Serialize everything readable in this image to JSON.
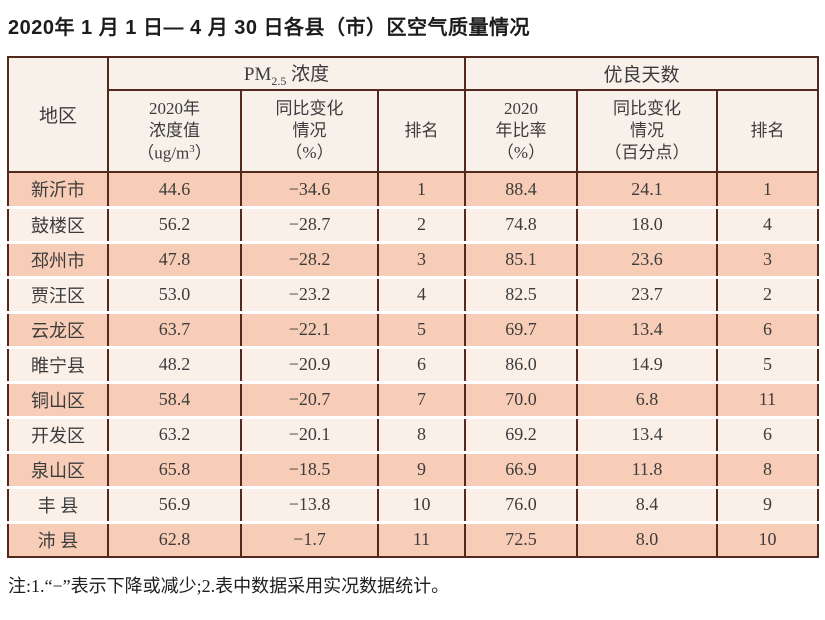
{
  "page": {
    "title": "2020年 1 月 1 日— 4 月 30 日各县（市）区空气质量情况",
    "footnote": "注:1.“−”表示下降或减少;2.表中数据采用实况数据统计。"
  },
  "colors": {
    "row_odd": "#f8cdb7",
    "row_even": "#fbf0e8",
    "header_bg": "#f8f1ea",
    "border": "#53281d",
    "text": "#3c3c3c"
  },
  "table": {
    "corner_header": "地区",
    "groups": {
      "pm_prefix": "PM",
      "pm_sub": "2.5",
      "pm_suffix": " 浓度",
      "good_days": "优良天数"
    },
    "subheaders": {
      "pm_value_l1": "2020年",
      "pm_value_l2": "浓度值",
      "pm_value_unit_open": "（ug/m",
      "pm_value_unit_sup": "3",
      "pm_value_unit_close": "）",
      "pm_change_l1": "同比变化",
      "pm_change_l2": "情况",
      "pm_change_l3": "（%）",
      "pm_rank": "排名",
      "ratio_l1": "2020",
      "ratio_l2": "年比率",
      "ratio_l3": "（%）",
      "good_change_l1": "同比变化",
      "good_change_l2": "情况",
      "good_change_l3": "（百分点）",
      "good_rank": "排名"
    },
    "rows": [
      {
        "region": "新沂市",
        "pm_value": "44.6",
        "pm_change": "−34.6",
        "pm_rank": "1",
        "ratio": "88.4",
        "good_change": "24.1",
        "good_rank": "1"
      },
      {
        "region": "鼓楼区",
        "pm_value": "56.2",
        "pm_change": "−28.7",
        "pm_rank": "2",
        "ratio": "74.8",
        "good_change": "18.0",
        "good_rank": "4"
      },
      {
        "region": "邳州市",
        "pm_value": "47.8",
        "pm_change": "−28.2",
        "pm_rank": "3",
        "ratio": "85.1",
        "good_change": "23.6",
        "good_rank": "3"
      },
      {
        "region": "贾汪区",
        "pm_value": "53.0",
        "pm_change": "−23.2",
        "pm_rank": "4",
        "ratio": "82.5",
        "good_change": "23.7",
        "good_rank": "2"
      },
      {
        "region": "云龙区",
        "pm_value": "63.7",
        "pm_change": "−22.1",
        "pm_rank": "5",
        "ratio": "69.7",
        "good_change": "13.4",
        "good_rank": "6"
      },
      {
        "region": "睢宁县",
        "pm_value": "48.2",
        "pm_change": "−20.9",
        "pm_rank": "6",
        "ratio": "86.0",
        "good_change": "14.9",
        "good_rank": "5"
      },
      {
        "region": "铜山区",
        "pm_value": "58.4",
        "pm_change": "−20.7",
        "pm_rank": "7",
        "ratio": "70.0",
        "good_change": "6.8",
        "good_rank": "11"
      },
      {
        "region": "开发区",
        "pm_value": "63.2",
        "pm_change": "−20.1",
        "pm_rank": "8",
        "ratio": "69.2",
        "good_change": "13.4",
        "good_rank": "6"
      },
      {
        "region": "泉山区",
        "pm_value": "65.8",
        "pm_change": "−18.5",
        "pm_rank": "9",
        "ratio": "66.9",
        "good_change": "11.8",
        "good_rank": "8"
      },
      {
        "region": "丰 县",
        "pm_value": "56.9",
        "pm_change": "−13.8",
        "pm_rank": "10",
        "ratio": "76.0",
        "good_change": "8.4",
        "good_rank": "9"
      },
      {
        "region": "沛 县",
        "pm_value": "62.8",
        "pm_change": "−1.7",
        "pm_rank": "11",
        "ratio": "72.5",
        "good_change": "8.0",
        "good_rank": "10"
      }
    ]
  }
}
